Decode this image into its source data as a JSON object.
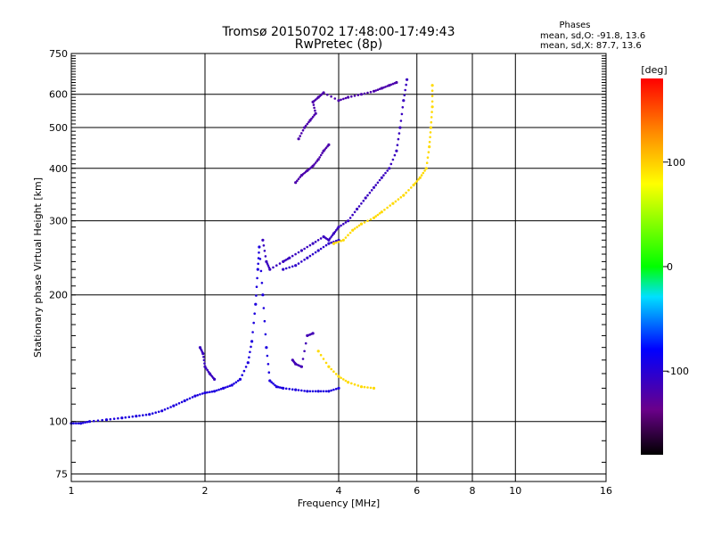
{
  "chart_data": {
    "type": "scatter",
    "title": "Tromsø 20150702 17:48:00-17:49:43",
    "subtitle": "RwPretec (8p)",
    "xlabel": "Frequency [MHz]",
    "ylabel": "Stationary phase Virtual Height [km]",
    "x_scale": "log",
    "y_scale": "log",
    "xlim": [
      1,
      16
    ],
    "ylim": [
      72,
      750
    ],
    "x_ticks": [
      1,
      2,
      4,
      6,
      8,
      10,
      16
    ],
    "x_tick_labels": [
      "1",
      "2",
      "4",
      "6",
      "8",
      "10",
      "16"
    ],
    "y_ticks": [
      75,
      100,
      200,
      300,
      400,
      500,
      600,
      750
    ],
    "y_tick_labels": [
      "75",
      "100",
      "200",
      "300",
      "400",
      "500",
      "600",
      "750"
    ],
    "grid": true,
    "stats": {
      "heading": "Phases",
      "line_o": "mean, sd,O: -91.8, 13.6",
      "line_x": "mean, sd,X:  87.7, 13.6"
    },
    "colorbar": {
      "label": "[deg]",
      "range": [
        -180,
        180
      ],
      "ticks": [
        100,
        0,
        -100
      ],
      "tick_labels": [
        "100",
        "0",
        "-100"
      ]
    },
    "series": [
      {
        "phase": -95,
        "points": [
          [
            1.0,
            99
          ],
          [
            1.05,
            99
          ],
          [
            1.1,
            100
          ],
          [
            1.2,
            101
          ],
          [
            1.3,
            102
          ],
          [
            1.4,
            103
          ],
          [
            1.5,
            104
          ],
          [
            1.6,
            106
          ],
          [
            1.7,
            109
          ],
          [
            1.8,
            112
          ],
          [
            1.9,
            115
          ],
          [
            2.0,
            117
          ],
          [
            2.1,
            118
          ],
          [
            2.2,
            120
          ],
          [
            2.3,
            122
          ],
          [
            2.4,
            126
          ],
          [
            2.5,
            138
          ],
          [
            2.55,
            155
          ],
          [
            2.6,
            190
          ],
          [
            2.63,
            230
          ],
          [
            2.65,
            260
          ],
          [
            2.7,
            200
          ],
          [
            2.75,
            150
          ],
          [
            2.8,
            125
          ],
          [
            2.9,
            121
          ],
          [
            3.0,
            120
          ],
          [
            3.2,
            119
          ],
          [
            3.4,
            118
          ],
          [
            3.6,
            118
          ],
          [
            3.8,
            118
          ],
          [
            4.0,
            120
          ]
        ]
      },
      {
        "phase": -110,
        "points": [
          [
            1.95,
            150
          ],
          [
            1.98,
            145
          ],
          [
            2.0,
            135
          ],
          [
            2.05,
            130
          ],
          [
            2.1,
            126
          ],
          [
            2.7,
            270
          ],
          [
            2.75,
            240
          ],
          [
            2.8,
            230
          ],
          [
            3.0,
            240
          ],
          [
            3.1,
            245
          ],
          [
            3.3,
            255
          ],
          [
            3.5,
            265
          ],
          [
            3.7,
            275
          ],
          [
            3.8,
            270
          ],
          [
            3.9,
            280
          ],
          [
            4.0,
            290
          ],
          [
            4.2,
            300
          ],
          [
            4.4,
            320
          ],
          [
            4.6,
            340
          ],
          [
            4.8,
            360
          ],
          [
            5.0,
            380
          ],
          [
            5.2,
            400
          ],
          [
            5.4,
            440
          ],
          [
            5.5,
            500
          ],
          [
            5.6,
            580
          ],
          [
            5.7,
            650
          ]
        ]
      },
      {
        "phase": -105,
        "points": [
          [
            3.0,
            230
          ],
          [
            3.2,
            235
          ],
          [
            3.4,
            245
          ],
          [
            3.6,
            255
          ],
          [
            3.8,
            265
          ],
          [
            4.0,
            270
          ]
        ]
      },
      {
        "phase": -120,
        "points": [
          [
            3.2,
            370
          ],
          [
            3.3,
            385
          ],
          [
            3.4,
            395
          ],
          [
            3.5,
            405
          ],
          [
            3.6,
            420
          ],
          [
            3.7,
            440
          ],
          [
            3.8,
            455
          ],
          [
            3.25,
            470
          ],
          [
            3.35,
            500
          ],
          [
            3.45,
            520
          ],
          [
            3.55,
            540
          ],
          [
            3.5,
            575
          ],
          [
            3.6,
            590
          ],
          [
            3.7,
            605
          ],
          [
            4.0,
            580
          ],
          [
            4.2,
            590
          ],
          [
            4.5,
            600
          ],
          [
            4.8,
            610
          ],
          [
            5.0,
            620
          ],
          [
            5.2,
            630
          ],
          [
            5.4,
            640
          ]
        ]
      },
      {
        "phase": -115,
        "points": [
          [
            3.15,
            140
          ],
          [
            3.2,
            137
          ],
          [
            3.3,
            135
          ],
          [
            3.4,
            160
          ],
          [
            3.5,
            162
          ]
        ]
      },
      {
        "phase": 95,
        "points": [
          [
            3.6,
            147
          ],
          [
            3.8,
            135
          ],
          [
            4.0,
            128
          ],
          [
            4.2,
            124
          ],
          [
            4.5,
            121
          ],
          [
            4.8,
            120
          ],
          [
            3.9,
            265
          ],
          [
            4.1,
            270
          ],
          [
            4.3,
            285
          ],
          [
            4.5,
            295
          ],
          [
            4.8,
            305
          ],
          [
            5.0,
            315
          ],
          [
            5.3,
            330
          ],
          [
            5.6,
            345
          ],
          [
            5.9,
            365
          ],
          [
            6.1,
            380
          ],
          [
            6.3,
            400
          ],
          [
            6.4,
            450
          ],
          [
            6.45,
            500
          ],
          [
            6.5,
            560
          ],
          [
            6.5,
            630
          ]
        ]
      }
    ]
  }
}
